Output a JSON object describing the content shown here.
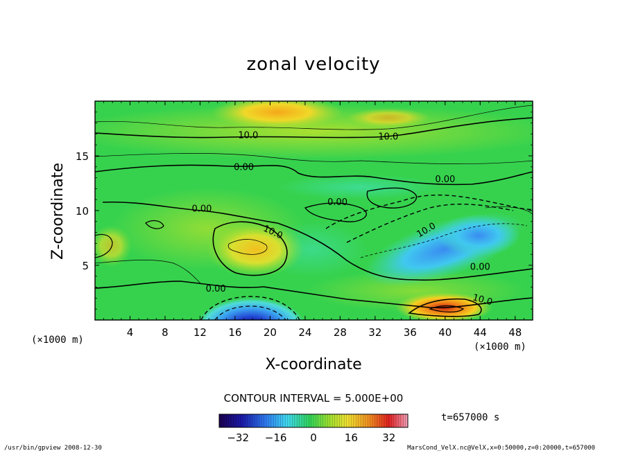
{
  "chart_data": {
    "type": "heatmap",
    "title": "zonal velocity",
    "xlabel": "X-coordinate",
    "ylabel": "Z-coordinate",
    "x_unit_left": "(×1000 m)",
    "x_unit_right": "(×1000 m)",
    "xlim": [
      0,
      50
    ],
    "ylim": [
      0,
      20
    ],
    "x_ticks": [
      4,
      8,
      12,
      16,
      20,
      24,
      28,
      32,
      36,
      40,
      44,
      48
    ],
    "y_ticks": [
      5,
      10,
      15
    ],
    "contour_interval_text": "CONTOUR INTERVAL = 5.000E+00",
    "contour_labels": [
      "10.0",
      "10.0",
      "0.00",
      "0.00",
      "0.00",
      "0.00",
      "10.0",
      "10.0",
      "0.00",
      "0.00",
      "10.0"
    ],
    "colorbar": {
      "min": -40,
      "max": 40,
      "ticks": [
        -32,
        -16,
        0,
        16,
        32
      ],
      "tick_labels": [
        "−32",
        "−16",
        "0",
        "16",
        "32"
      ]
    },
    "time_label": "t=657000 s",
    "features": [
      {
        "x": 18,
        "z": 0.5,
        "value": -32
      },
      {
        "x": 41,
        "z": 1.2,
        "value": 28
      },
      {
        "x": 20,
        "z": 18.5,
        "value": 20
      },
      {
        "x": 37,
        "z": 6.5,
        "value": -12
      },
      {
        "x": 43,
        "z": 7.5,
        "value": -14
      },
      {
        "x": 19,
        "z": 6.5,
        "value": 18
      }
    ]
  },
  "footer": {
    "left": "/usr/bin/gpview  2008-12-30",
    "right": "MarsCond_VelX.nc@VelX,x=0:50000,z=0:20000,t=657000"
  },
  "colors": {
    "background": "#ffffff",
    "field_base": "#35d24a",
    "positive": "#f5c21b",
    "negative": "#3a6cf0"
  }
}
